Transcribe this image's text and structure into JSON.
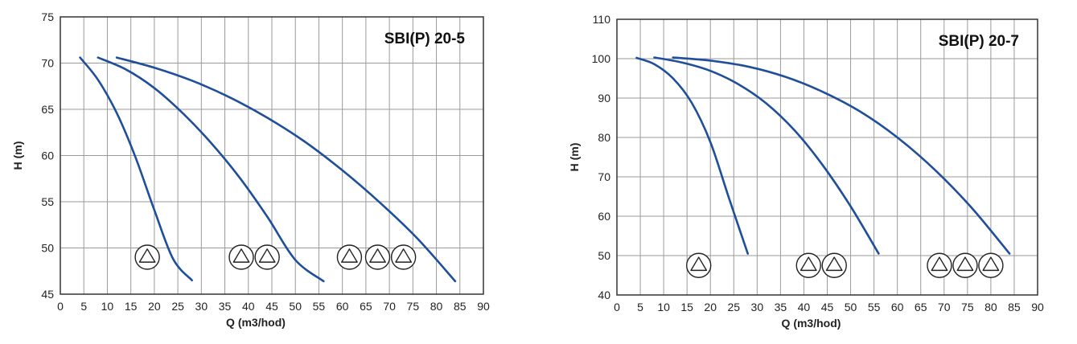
{
  "chart_data": [
    {
      "type": "line",
      "title": "SBI(P) 20-5",
      "xlabel": "Q (m3/hod)",
      "ylabel": "H (m)",
      "xlim": [
        0,
        90
      ],
      "ylim": [
        45,
        75
      ],
      "xticks": [
        0,
        5,
        10,
        15,
        20,
        25,
        30,
        35,
        40,
        45,
        50,
        55,
        60,
        65,
        70,
        75,
        80,
        85,
        90
      ],
      "yticks": [
        45,
        50,
        55,
        60,
        65,
        70,
        75
      ],
      "grid": true,
      "line_color": "#1F4E9B",
      "series": [
        {
          "x": [
            4.2,
            8,
            12,
            16,
            20,
            24,
            28
          ],
          "y": [
            70.6,
            68.2,
            64.6,
            59.8,
            54.1,
            48.8,
            46.5
          ],
          "symbols": 1
        },
        {
          "x": [
            8,
            14,
            20,
            26,
            32,
            38,
            44,
            50,
            56
          ],
          "y": [
            70.6,
            69.3,
            67.3,
            64.6,
            61.4,
            57.7,
            53.4,
            48.7,
            46.4
          ],
          "symbols": 2
        },
        {
          "x": [
            12,
            20,
            28,
            36,
            44,
            52,
            60,
            68,
            76,
            84
          ],
          "y": [
            70.6,
            69.5,
            68.1,
            66.3,
            64.1,
            61.5,
            58.4,
            54.9,
            51.0,
            46.4
          ],
          "symbols": 3
        }
      ],
      "symbol_y": 49,
      "symbol_x": [
        [
          18.5
        ],
        [
          38.5,
          44.0
        ],
        [
          61.5,
          67.5,
          73.0
        ]
      ]
    },
    {
      "type": "line",
      "title": "SBI(P) 20-7",
      "xlabel": "Q (m3/hod)",
      "ylabel": "H (m)",
      "xlim": [
        0,
        90
      ],
      "ylim": [
        40,
        110
      ],
      "xticks": [
        0,
        5,
        10,
        15,
        20,
        25,
        30,
        35,
        40,
        45,
        50,
        55,
        60,
        65,
        70,
        75,
        80,
        85,
        90
      ],
      "yticks": [
        40,
        50,
        60,
        70,
        80,
        90,
        100,
        110
      ],
      "grid": true,
      "line_color": "#1F4E9B",
      "series": [
        {
          "x": [
            4.2,
            8,
            12,
            16,
            20,
            24,
            28
          ],
          "y": [
            100.2,
            98.6,
            95.0,
            88.8,
            78.8,
            64.5,
            50.5
          ],
          "symbols": 1
        },
        {
          "x": [
            8,
            14,
            20,
            26,
            32,
            38,
            44,
            50,
            56
          ],
          "y": [
            100.3,
            99.0,
            96.9,
            93.5,
            88.6,
            81.8,
            73.0,
            62.5,
            50.5
          ],
          "symbols": 2
        },
        {
          "x": [
            12,
            20,
            28,
            36,
            44,
            52,
            60,
            68,
            76,
            84
          ],
          "y": [
            100.3,
            99.5,
            98.0,
            95.4,
            91.6,
            86.6,
            80.0,
            71.8,
            62.0,
            50.5
          ],
          "symbols": 3
        }
      ],
      "symbol_y": 47.5,
      "symbol_x": [
        [
          17.5
        ],
        [
          41.0,
          46.5
        ],
        [
          69.0,
          74.5,
          80.0
        ]
      ]
    }
  ]
}
